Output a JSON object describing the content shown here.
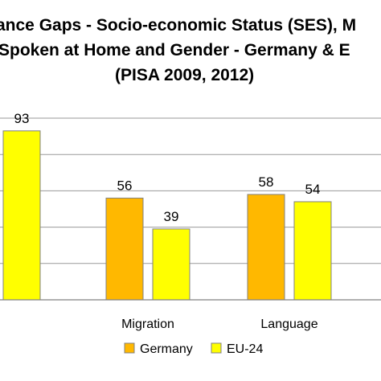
{
  "title": {
    "line1": "ance Gaps - Socio-economic Status (SES), M",
    "line2": "Spoken at Home and Gender - Germany & E",
    "line3": "(PISA 2009, 2012)"
  },
  "colors": {
    "germany": "#FFB800",
    "eu24": "#FFFF00",
    "bar_border": "#808080",
    "grid": "#9a9a9a",
    "axis": "#808080"
  },
  "chart_data": {
    "type": "bar",
    "title": "ance Gaps - Socio-economic Status (SES), M Spoken at Home and Gender - Germany & E (PISA 2009, 2012)",
    "xlabel": "",
    "ylabel": "",
    "ylim": [
      0,
      100
    ],
    "grid": true,
    "legend_position": "bottom",
    "categories": [
      "",
      "Migration",
      "Language"
    ],
    "series": [
      {
        "name": "Germany",
        "color": "#FFB800",
        "values": [
          null,
          56,
          58
        ],
        "labels": [
          "",
          "56",
          "58"
        ]
      },
      {
        "name": "EU-24",
        "color": "#FFFF00",
        "values": [
          93,
          39,
          54
        ],
        "labels": [
          "93",
          "39",
          "54"
        ]
      }
    ],
    "legend": [
      "Germany",
      "EU-24"
    ]
  }
}
